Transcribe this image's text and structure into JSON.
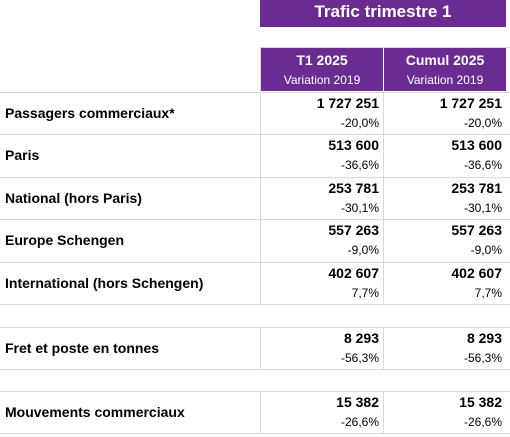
{
  "title": "Trafic trimestre 1",
  "columns": [
    {
      "label": "T1 2025",
      "sublabel": "Variation 2019"
    },
    {
      "label": "Cumul 2025",
      "sublabel": "Variation 2019"
    }
  ],
  "rows": [
    {
      "label": "Passagers commerciaux*",
      "t1": "1 727 251",
      "t1_var": "-20,0%",
      "cumul": "1 727 251",
      "cumul_var": "-20,0%"
    },
    {
      "label": "Paris",
      "t1": "513 600",
      "t1_var": "-36,6%",
      "cumul": "513 600",
      "cumul_var": "-36,6%"
    },
    {
      "label": "National (hors Paris)",
      "t1": "253 781",
      "t1_var": "-30,1%",
      "cumul": "253 781",
      "cumul_var": "-30,1%"
    },
    {
      "label": "Europe Schengen",
      "t1": "557 263",
      "t1_var": "-9,0%",
      "cumul": "557 263",
      "cumul_var": "-9,0%"
    },
    {
      "label": "International (hors Schengen)",
      "t1": "402 607",
      "t1_var": "7,7%",
      "cumul": "402 607",
      "cumul_var": "7,7%"
    },
    {
      "label": "Fret et poste en tonnes",
      "t1": "8 293",
      "t1_var": "-56,3%",
      "cumul": "8 293",
      "cumul_var": "-56,3%"
    },
    {
      "label": "Mouvements commerciaux",
      "t1": "15 382",
      "t1_var": "-26,6%",
      "cumul": "15 382",
      "cumul_var": "-26,6%"
    }
  ]
}
